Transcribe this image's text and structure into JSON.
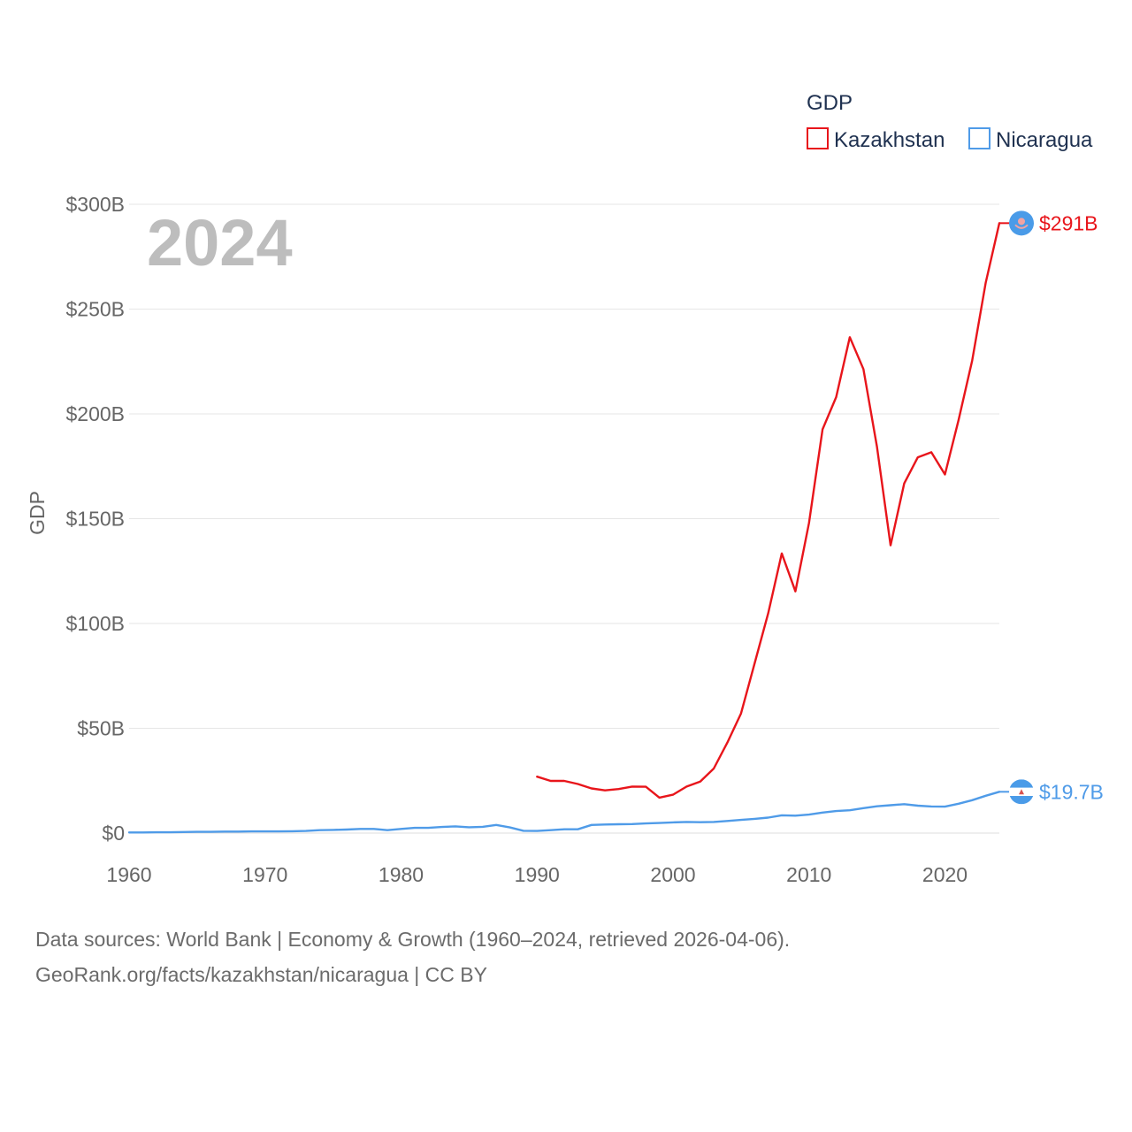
{
  "chart_data": {
    "type": "line",
    "legend_title": "GDP",
    "ylabel": "GDP",
    "xlabel": "",
    "watermark_year": "2024",
    "xlim": [
      1960,
      2024
    ],
    "ylim": [
      0,
      300
    ],
    "y_unit": "B USD",
    "x_ticks": [
      1960,
      1970,
      1980,
      1990,
      2000,
      2010,
      2020
    ],
    "y_ticks": [
      {
        "value": 0,
        "label": "$0"
      },
      {
        "value": 50,
        "label": "$50B"
      },
      {
        "value": 100,
        "label": "$100B"
      },
      {
        "value": 150,
        "label": "$150B"
      },
      {
        "value": 200,
        "label": "$200B"
      },
      {
        "value": 250,
        "label": "$250B"
      },
      {
        "value": 300,
        "label": "$300B"
      }
    ],
    "series": [
      {
        "name": "Kazakhstan",
        "color": "#e8151b",
        "end_label": "$291B",
        "flag_icon": "kazakhstan-flag-icon",
        "x": [
          1990,
          1991,
          1992,
          1993,
          1994,
          1995,
          1996,
          1997,
          1998,
          1999,
          2000,
          2001,
          2002,
          2003,
          2004,
          2005,
          2006,
          2007,
          2008,
          2009,
          2010,
          2011,
          2012,
          2013,
          2014,
          2015,
          2016,
          2017,
          2018,
          2019,
          2020,
          2021,
          2022,
          2023,
          2024
        ],
        "values": [
          26.9,
          24.9,
          24.9,
          23.4,
          21.3,
          20.4,
          21.0,
          22.2,
          22.1,
          16.9,
          18.3,
          22.2,
          24.6,
          30.8,
          43.2,
          57.1,
          81.0,
          104.8,
          133.4,
          115.3,
          148.0,
          192.6,
          208.0,
          236.6,
          221.4,
          184.4,
          137.3,
          166.8,
          179.3,
          181.7,
          171.1,
          197.1,
          225.5,
          262.6,
          291.0
        ]
      },
      {
        "name": "Nicaragua",
        "color": "#4f9be8",
        "end_label": "$19.7B",
        "flag_icon": "nicaragua-flag-icon",
        "x": [
          1960,
          1961,
          1962,
          1963,
          1964,
          1965,
          1966,
          1967,
          1968,
          1969,
          1970,
          1971,
          1972,
          1973,
          1974,
          1975,
          1976,
          1977,
          1978,
          1979,
          1980,
          1981,
          1982,
          1983,
          1984,
          1985,
          1986,
          1987,
          1988,
          1989,
          1990,
          1991,
          1992,
          1993,
          1994,
          1995,
          1996,
          1997,
          1998,
          1999,
          2000,
          2001,
          2002,
          2003,
          2004,
          2005,
          2006,
          2007,
          2008,
          2009,
          2010,
          2011,
          2012,
          2013,
          2014,
          2015,
          2016,
          2017,
          2018,
          2019,
          2020,
          2021,
          2022,
          2023,
          2024
        ],
        "values": [
          0.3,
          0.3,
          0.4,
          0.4,
          0.5,
          0.6,
          0.6,
          0.7,
          0.7,
          0.8,
          0.8,
          0.8,
          0.9,
          1.0,
          1.4,
          1.5,
          1.7,
          2.0,
          2.0,
          1.4,
          2.0,
          2.5,
          2.5,
          2.9,
          3.2,
          2.8,
          3.0,
          3.9,
          2.7,
          1.1,
          1.0,
          1.4,
          1.8,
          1.8,
          3.9,
          4.1,
          4.2,
          4.3,
          4.6,
          4.8,
          5.1,
          5.3,
          5.2,
          5.3,
          5.8,
          6.3,
          6.8,
          7.4,
          8.5,
          8.3,
          8.8,
          9.8,
          10.5,
          10.9,
          11.9,
          12.8,
          13.3,
          13.8,
          13.1,
          12.7,
          12.6,
          14.0,
          15.7,
          17.8,
          19.7
        ]
      }
    ]
  },
  "source_lines": [
    "Data sources: World Bank | Economy & Growth (1960–2024, retrieved 2026-04-06).",
    "GeoRank.org/facts/kazakhstan/nicaragua | CC BY"
  ]
}
